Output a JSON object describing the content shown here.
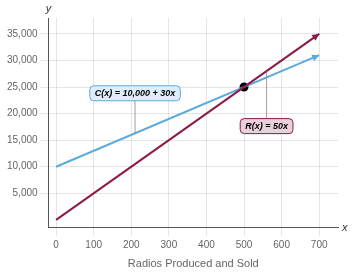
{
  "chart_data": {
    "type": "line",
    "xlabel": "Radios Produced and Sold",
    "annotations": [
      {
        "text": "x",
        "axis": "x"
      },
      {
        "text": "y",
        "axis": "y"
      }
    ],
    "series": [
      {
        "name": "R(x) = 50x",
        "color": "#8b1a4a",
        "x": [
          0,
          700
        ],
        "values": [
          0,
          35000
        ]
      },
      {
        "name": "C(x) = 10,000 + 30x",
        "color": "#5aabdc",
        "x": [
          0,
          700
        ],
        "values": [
          10000,
          31000
        ]
      },
      {
        "type": "scatter",
        "color": "#000000",
        "x": [
          500
        ],
        "values": [
          25000
        ]
      }
    ],
    "xlim": [
      -20,
      750
    ],
    "xticks": [
      0,
      100,
      200,
      300,
      400,
      500,
      600,
      700
    ],
    "ylim": [
      -1500,
      38000
    ],
    "yticks": [
      {
        "value": 5000,
        "label": "5,000"
      },
      {
        "value": 10000,
        "label": "10,000"
      },
      {
        "value": 15000,
        "label": "15,000"
      },
      {
        "value": 20000,
        "label": "20,000"
      },
      {
        "value": 25000,
        "label": "25,000"
      },
      {
        "value": 30000,
        "label": "30,000"
      },
      {
        "value": 35000,
        "label": "35,000"
      }
    ],
    "grid": true
  }
}
